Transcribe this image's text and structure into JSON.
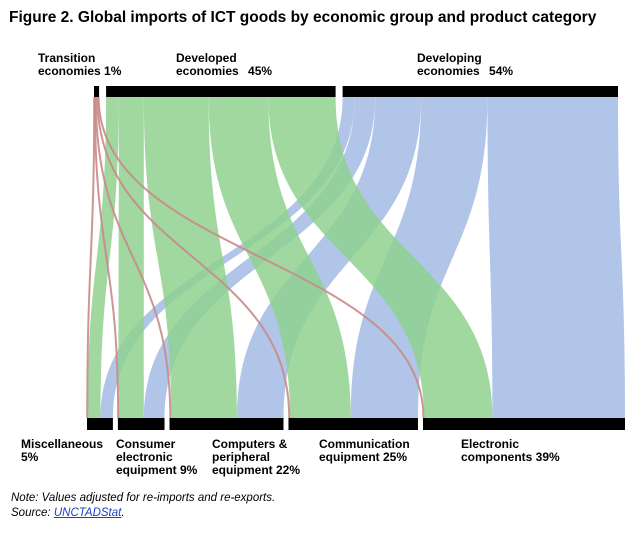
{
  "title": "Figure 2. Global imports of ICT goods by economic group and product category",
  "chart_data": {
    "type": "sankey",
    "title": "Figure 2. Global imports of ICT goods by economic group and product category",
    "sources": [
      {
        "id": "transition",
        "line1": "Transition",
        "line2": "economies",
        "pct_label": "1%",
        "share": 1,
        "color": "#c98a8a"
      },
      {
        "id": "developed",
        "line1": "Developed",
        "line2": "economies",
        "pct_label": "45%",
        "share": 45,
        "color": "#8fd18f"
      },
      {
        "id": "developing",
        "line1": "Developing",
        "line2": "economies",
        "pct_label": "54%",
        "share": 54,
        "color": "#a9bfe6"
      }
    ],
    "targets": [
      {
        "id": "misc",
        "lines": [
          "Miscellaneous",
          "5%"
        ],
        "share": 5
      },
      {
        "id": "consumer",
        "lines": [
          "Consumer",
          "electronic",
          "equipment 9%"
        ],
        "share": 9
      },
      {
        "id": "computers",
        "lines": [
          "Computers &",
          "peripheral",
          "equipment 22%"
        ],
        "share": 22
      },
      {
        "id": "communication",
        "lines": [
          "Communication",
          "equipment 25%"
        ],
        "share": 25
      },
      {
        "id": "electronic",
        "lines": [
          "Electronic",
          "components 39%"
        ],
        "share": 39
      }
    ],
    "flows": [
      {
        "source": "transition",
        "target": "misc",
        "value": 0.1
      },
      {
        "source": "transition",
        "target": "consumer",
        "value": 0.1
      },
      {
        "source": "transition",
        "target": "computers",
        "value": 0.3
      },
      {
        "source": "transition",
        "target": "communication",
        "value": 0.3
      },
      {
        "source": "transition",
        "target": "electronic",
        "value": 0.2
      },
      {
        "source": "developed",
        "target": "misc",
        "value": 2.5
      },
      {
        "source": "developed",
        "target": "consumer",
        "value": 4.9
      },
      {
        "source": "developed",
        "target": "computers",
        "value": 12.7
      },
      {
        "source": "developed",
        "target": "communication",
        "value": 11.7
      },
      {
        "source": "developed",
        "target": "electronic",
        "value": 13.2
      },
      {
        "source": "developing",
        "target": "misc",
        "value": 2.4
      },
      {
        "source": "developing",
        "target": "consumer",
        "value": 4.0
      },
      {
        "source": "developing",
        "target": "computers",
        "value": 9.0
      },
      {
        "source": "developing",
        "target": "communication",
        "value": 13.0
      },
      {
        "source": "developing",
        "target": "electronic",
        "value": 25.6
      }
    ]
  },
  "note": "Note: Values adjusted for re-imports and re-exports.",
  "source": {
    "prefix": "Source: ",
    "link_text": "UNCTADStat",
    "suffix": "."
  }
}
